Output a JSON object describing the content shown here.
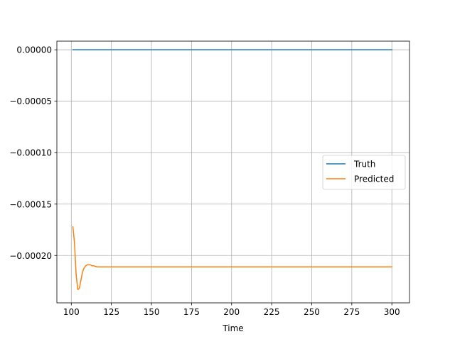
{
  "chart_data": {
    "type": "line",
    "title": "",
    "xlabel": "Time",
    "ylabel": "",
    "xlim": [
      91,
      311
    ],
    "ylim": [
      -0.000246,
      8.4e-06
    ],
    "xticks": [
      100,
      125,
      150,
      175,
      200,
      225,
      250,
      275,
      300
    ],
    "xtick_labels": [
      "100",
      "125",
      "150",
      "175",
      "200",
      "225",
      "250",
      "275",
      "300"
    ],
    "yticks": [
      0.0,
      -5e-05,
      -0.0001,
      -0.00015,
      -0.0002
    ],
    "ytick_labels": [
      "0.00000",
      "−0.00005",
      "−0.00010",
      "−0.00015",
      "−0.00020"
    ],
    "grid": true,
    "legend_position": "center-right",
    "series": [
      {
        "name": "Truth",
        "color": "#1f77b4",
        "x": [
          101,
          300
        ],
        "y": [
          0.0,
          0.0
        ]
      },
      {
        "name": "Predicted",
        "color": "#ff7f0e",
        "x": [
          101,
          102,
          103,
          104,
          105,
          106,
          107,
          108,
          109,
          110,
          111,
          112,
          113,
          114,
          116,
          118,
          120,
          125,
          150,
          200,
          250,
          300
        ],
        "y": [
          -0.000172,
          -0.000188,
          -0.000218,
          -0.000233,
          -0.000232,
          -0.000224,
          -0.000216,
          -0.000212,
          -0.00021,
          -0.000209,
          -0.000209,
          -0.000209,
          -0.00021,
          -0.00021,
          -0.000211,
          -0.000211,
          -0.000211,
          -0.000211,
          -0.000211,
          -0.000211,
          -0.000211,
          -0.000211
        ]
      }
    ]
  }
}
